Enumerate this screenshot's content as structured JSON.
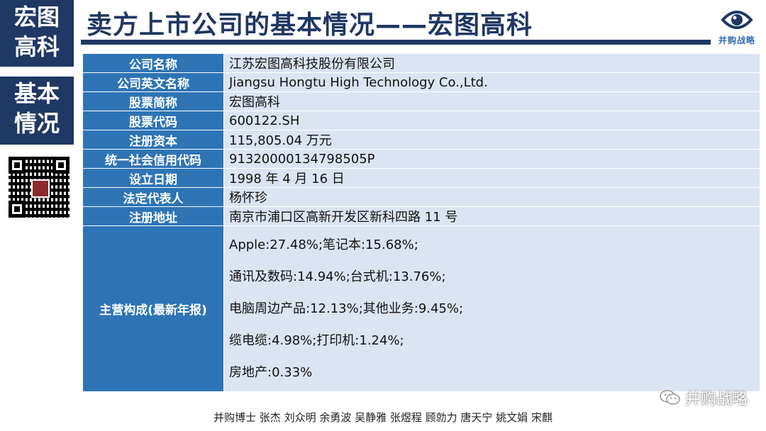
{
  "side": {
    "top_line1": "宏图",
    "top_line2": "高科",
    "mid_line1": "基本",
    "mid_line2": "情况"
  },
  "title": "卖方上市公司的基本情况——宏图高科",
  "logo_text": "并购战略",
  "rows": [
    {
      "label": "公司名称",
      "value": "江苏宏图高科技股份有限公司"
    },
    {
      "label": "公司英文名称",
      "value": "Jiangsu Hongtu High Technology Co.,Ltd."
    },
    {
      "label": "股票简称",
      "value": "宏图高科"
    },
    {
      "label": "股票代码",
      "value": "600122.SH"
    },
    {
      "label": "注册资本",
      "value": "115,805.04 万元"
    },
    {
      "label": "统一社会信用代码",
      "value": "91320000134798505P"
    },
    {
      "label": "设立日期",
      "value": "1998 年 4 月 16 日"
    },
    {
      "label": "法定代表人",
      "value": "杨怀珍"
    },
    {
      "label": "注册地址",
      "value": "南京市浦口区高新开发区新科四路 11 号"
    }
  ],
  "business": {
    "label": "主营构成(最新年报)",
    "lines": [
      "Apple:27.48%;笔记本:15.68%;",
      "通讯及数码:14.94%;台式机:13.76%;",
      "电脑周边产品:12.13%;其他业务:9.45%;",
      "缆电缆:4.98%;打印机:1.24%;",
      "房地产:0.33%"
    ]
  },
  "watermark": "并购战略",
  "footer": "并购博士 张杰 刘众明 余勇波 吴静雅 张煜程  顾勍力 唐天宁 姚文娟 宋麒",
  "colors": {
    "navy": "#1f3864",
    "label_blue": "#2e74b5",
    "value_bg": "#dbe4f3"
  }
}
